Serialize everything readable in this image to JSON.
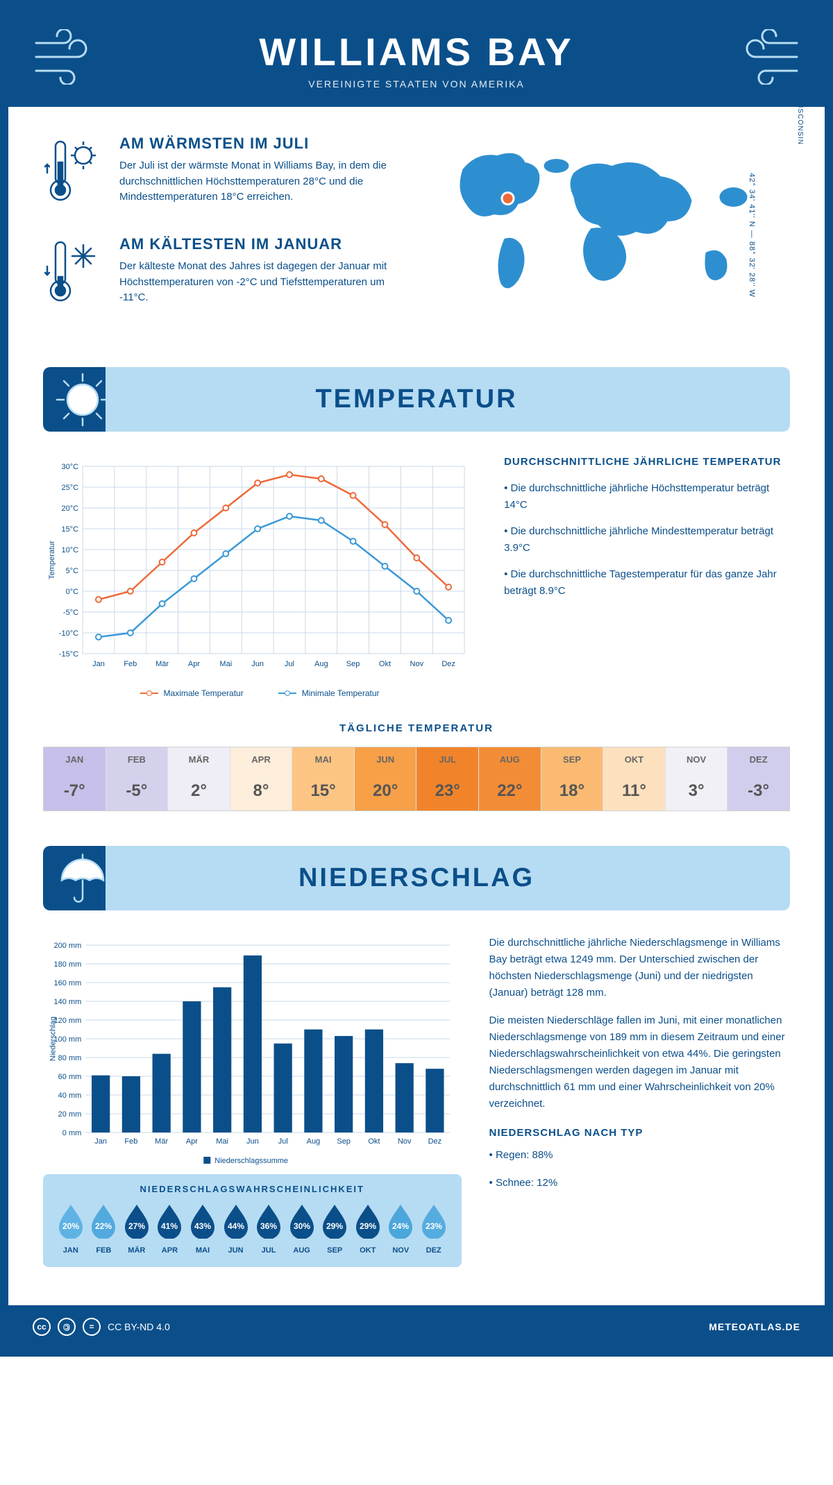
{
  "header": {
    "title": "WILLIAMS BAY",
    "subtitle": "VEREINIGTE STAATEN VON AMERIKA"
  },
  "intro": {
    "warm": {
      "title": "AM WÄRMSTEN IM JULI",
      "text": "Der Juli ist der wärmste Monat in Williams Bay, in dem die durchschnittlichen Höchsttemperaturen 28°C und die Mindesttemperaturen 18°C erreichen."
    },
    "cold": {
      "title": "AM KÄLTESTEN IM JANUAR",
      "text": "Der kälteste Monat des Jahres ist dagegen der Januar mit Höchsttemperaturen von -2°C und Tiefsttemperaturen um -11°C."
    },
    "coords": "42° 34' 41'' N — 88° 32' 28'' W",
    "state": "WISCONSIN"
  },
  "sections": {
    "temperature": "TEMPERATUR",
    "precipitation": "NIEDERSCHLAG"
  },
  "tempChart": {
    "type": "line",
    "months": [
      "Jan",
      "Feb",
      "Mär",
      "Apr",
      "Mai",
      "Jun",
      "Jul",
      "Aug",
      "Sep",
      "Okt",
      "Nov",
      "Dez"
    ],
    "max": {
      "values": [
        -2,
        0,
        7,
        14,
        20,
        26,
        28,
        27,
        23,
        16,
        8,
        1
      ],
      "color": "#ed6a3a",
      "label": "Maximale Temperatur"
    },
    "min": {
      "values": [
        -11,
        -10,
        -3,
        3,
        9,
        15,
        18,
        17,
        12,
        6,
        0,
        -7
      ],
      "color": "#3d99d6",
      "label": "Minimale Temperatur"
    },
    "ylabel": "Temperatur",
    "ylim": [
      -15,
      30
    ],
    "ytick_step": 5,
    "grid_color": "#c9d9e8",
    "marker": "circle",
    "marker_size": 4
  },
  "tempText": {
    "heading": "DURCHSCHNITTLICHE JÄHRLICHE TEMPERATUR",
    "b1": "• Die durchschnittliche jährliche Höchsttemperatur beträgt 14°C",
    "b2": "• Die durchschnittliche jährliche Mindesttemperatur beträgt 3.9°C",
    "b3": "• Die durchschnittliche Tagestemperatur für das ganze Jahr beträgt 8.9°C"
  },
  "dailyTemp": {
    "title": "TÄGLICHE TEMPERATUR",
    "months": [
      "JAN",
      "FEB",
      "MÄR",
      "APR",
      "MAI",
      "JUN",
      "JUL",
      "AUG",
      "SEP",
      "OKT",
      "NOV",
      "DEZ"
    ],
    "values": [
      "-7°",
      "-5°",
      "2°",
      "8°",
      "15°",
      "20°",
      "23°",
      "22°",
      "18°",
      "11°",
      "3°",
      "-3°"
    ],
    "colors": [
      "#c9c3ed",
      "#d5d2ee",
      "#f0eef7",
      "#fdeedd",
      "#fcc88a",
      "#f8a64e",
      "#f28a2e",
      "#f4923a",
      "#fbbf7a",
      "#fde3c2",
      "#f3f1f8",
      "#d2cee e"
    ],
    "cellColors": [
      "#c6c0ea",
      "#d4d1ed",
      "#efedf6",
      "#fdeddb",
      "#fcc583",
      "#f7a048",
      "#f1842a",
      "#f38d35",
      "#fbba72",
      "#fde1bf",
      "#f2f0f7",
      "#d1ceed"
    ]
  },
  "precipChart": {
    "type": "bar",
    "months": [
      "Jan",
      "Feb",
      "Mär",
      "Apr",
      "Mai",
      "Jun",
      "Jul",
      "Aug",
      "Sep",
      "Okt",
      "Nov",
      "Dez"
    ],
    "values": [
      61,
      60,
      84,
      140,
      155,
      189,
      95,
      110,
      103,
      110,
      74,
      68
    ],
    "bar_color": "#0b4f8a",
    "ylabel": "Niederschlag",
    "ylim": [
      0,
      200
    ],
    "ytick_step": 20,
    "grid_color": "#c9d9e8",
    "legend": "Niederschlagssumme"
  },
  "precipText": {
    "p1": "Die durchschnittliche jährliche Niederschlagsmenge in Williams Bay beträgt etwa 1249 mm. Der Unterschied zwischen der höchsten Niederschlagsmenge (Juni) und der niedrigsten (Januar) beträgt 128 mm.",
    "p2": "Die meisten Niederschläge fallen im Juni, mit einer monatlichen Niederschlagsmenge von 189 mm in diesem Zeitraum und einer Niederschlagswahrscheinlichkeit von etwa 44%. Die geringsten Niederschlagsmengen werden dagegen im Januar mit durchschnittlich 61 mm und einer Wahrscheinlichkeit von 20% verzeichnet.",
    "typeHeading": "NIEDERSCHLAG NACH TYP",
    "t1": "• Regen: 88%",
    "t2": "• Schnee: 12%"
  },
  "precipProb": {
    "title": "NIEDERSCHLAGSWAHRSCHEINLICHKEIT",
    "months": [
      "JAN",
      "FEB",
      "MÄR",
      "APR",
      "MAI",
      "JUN",
      "JUL",
      "AUG",
      "SEP",
      "OKT",
      "NOV",
      "DEZ"
    ],
    "values": [
      "20%",
      "22%",
      "27%",
      "41%",
      "43%",
      "44%",
      "36%",
      "30%",
      "29%",
      "29%",
      "24%",
      "23%"
    ],
    "colors": [
      "#5fb3e4",
      "#52aade",
      "#0b4f8a",
      "#0b4f8a",
      "#0b4f8a",
      "#0b4f8a",
      "#0b4f8a",
      "#0b4f8a",
      "#0b4f8a",
      "#0b4f8a",
      "#4ba6db",
      "#55acdf"
    ]
  },
  "footer": {
    "license": "CC BY-ND 4.0",
    "site": "METEOATLAS.DE"
  },
  "colors": {
    "primary": "#0b4f8a",
    "light": "#b6dcf3",
    "accent": "#ed6a3a"
  }
}
